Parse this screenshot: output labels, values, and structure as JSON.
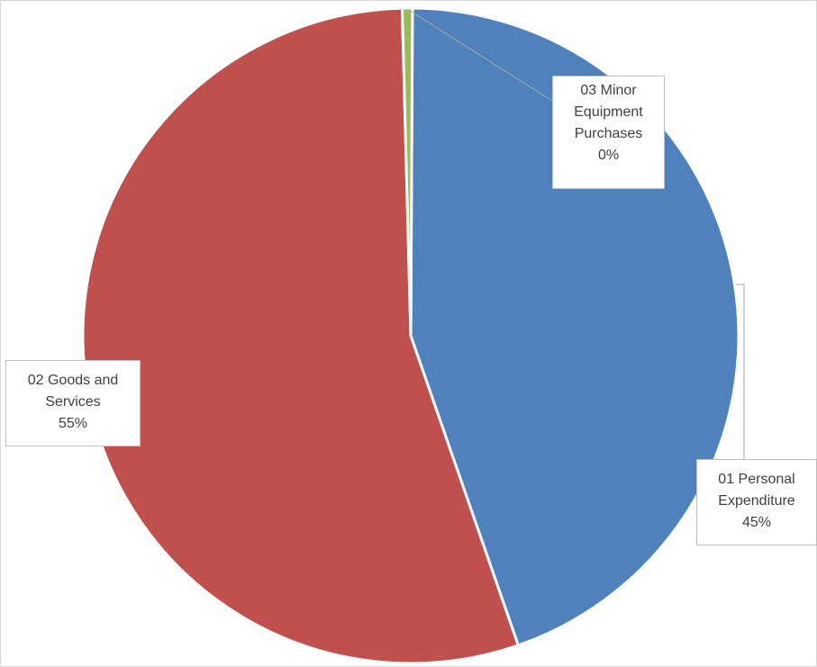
{
  "chart_data": {
    "type": "pie",
    "title": "",
    "legend": "none",
    "slices": [
      {
        "name": "01 Personal Expenditure",
        "value": 44.6,
        "percent_label": "45%",
        "color": "#4f81bd"
      },
      {
        "name": "02 Goods and Services",
        "value": 54.9,
        "percent_label": "55%",
        "color": "#c0504d"
      },
      {
        "name": "03 Minor Equipment Purchases",
        "value": 0.5,
        "percent_label": "0%",
        "color": "#9bbb59"
      }
    ]
  },
  "labels": {
    "personal": {
      "line1": "01 Personal",
      "line2": "Expenditure",
      "pct": "45%"
    },
    "goods": {
      "line1": "02 Goods and",
      "line2": "Services",
      "pct": "55%"
    },
    "minor": {
      "line1": "03 Minor",
      "line2": "Equipment",
      "line3": "Purchases",
      "pct": "0%"
    }
  }
}
